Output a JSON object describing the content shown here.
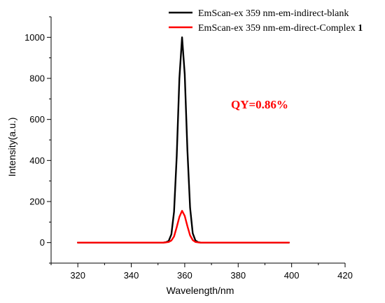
{
  "chart_data": {
    "type": "line",
    "xlabel": "Wavelength/nm",
    "ylabel": "Intensity(a.u.)",
    "xlim": [
      310,
      420
    ],
    "ylim": [
      -100,
      1100
    ],
    "x_ticks": [
      320,
      340,
      360,
      380,
      400,
      420
    ],
    "y_ticks": [
      0,
      200,
      400,
      600,
      800,
      1000
    ],
    "grid": false,
    "legend_position": "top-right",
    "annotation": {
      "text": "QY=0.86%",
      "color": "#ff0000"
    },
    "series": [
      {
        "name": "EmScan-ex 359 nm-em-indirect-blank",
        "color": "#000000",
        "x": [
          320,
          330,
          340,
          350,
          352,
          353,
          354,
          355,
          356,
          357,
          358,
          359,
          360,
          361,
          362,
          363,
          364,
          365,
          366,
          370,
          380,
          390,
          399
        ],
        "y": [
          0,
          0,
          0,
          0,
          0,
          2,
          8,
          40,
          150,
          420,
          800,
          1000,
          820,
          450,
          170,
          45,
          10,
          2,
          0,
          0,
          0,
          0,
          0
        ]
      },
      {
        "name": "EmScan-ex 359 nm-em-direct-Complex 1",
        "color": "#ff0000",
        "x": [
          320,
          330,
          340,
          350,
          352,
          353,
          354,
          355,
          356,
          357,
          358,
          359,
          360,
          361,
          362,
          363,
          364,
          365,
          366,
          370,
          380,
          390,
          399
        ],
        "y": [
          0,
          0,
          0,
          0,
          0,
          1,
          3,
          10,
          30,
          75,
          125,
          155,
          130,
          80,
          35,
          12,
          3,
          1,
          0,
          0,
          0,
          0,
          0
        ]
      }
    ],
    "legend": [
      {
        "label_main": "EmScan-ex 359 nm-em-indirect-blank",
        "label_bold": ""
      },
      {
        "label_main": "EmScan-ex 359 nm-em-direct-Complex ",
        "label_bold": "1"
      }
    ]
  }
}
